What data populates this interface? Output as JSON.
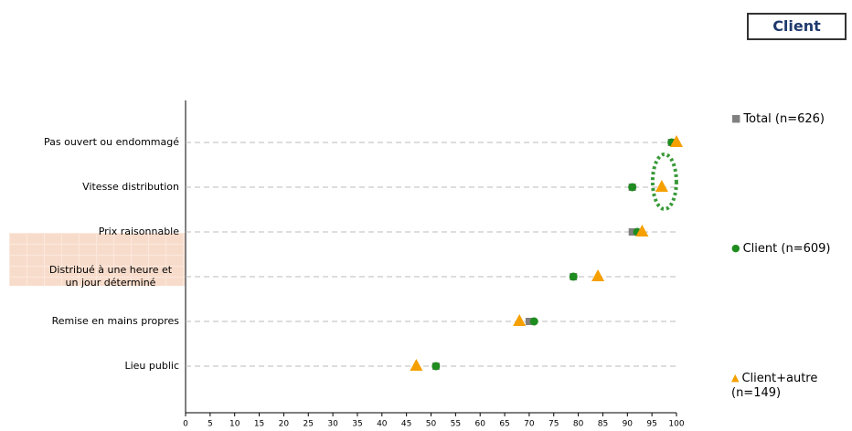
{
  "chart_data": {
    "type": "dot",
    "title": "Client",
    "categories": [
      "Pas ouvert ou endommagé",
      "Vitesse distribution",
      "Prix raisonnable",
      "Distribué à une heure et un jour déterminé",
      "Remise en mains propres",
      "Lieu public"
    ],
    "series": [
      {
        "name": "Total (n=626)",
        "color": "#808080",
        "marker": "square",
        "values": [
          99,
          91,
          91,
          79,
          70,
          51
        ]
      },
      {
        "name": "Client (n=609)",
        "color": "#1e8c1e",
        "marker": "circle",
        "values": [
          99,
          91,
          92,
          79,
          71,
          51
        ]
      },
      {
        "name": "Client+autre (n=149)",
        "color": "#f5a000",
        "marker": "triangle",
        "values": [
          100,
          97,
          93,
          84,
          68,
          47
        ]
      }
    ],
    "xlim": [
      0,
      100
    ],
    "xticks": [
      0,
      5,
      10,
      15,
      20,
      25,
      30,
      35,
      40,
      45,
      50,
      55,
      60,
      65,
      70,
      75,
      80,
      85,
      90,
      95,
      100
    ],
    "grid": true
  }
}
